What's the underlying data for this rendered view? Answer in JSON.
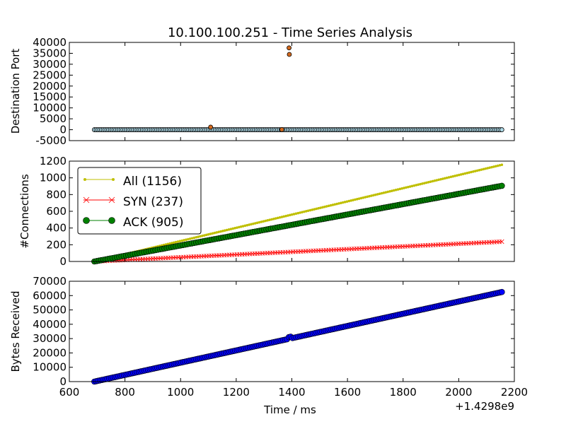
{
  "title": "10.100.100.251 - Time Series Analysis",
  "colors": {
    "all": "#bfbf00",
    "syn": "#ff0000",
    "ack": "#008000",
    "bytes": "#0000ff",
    "port_dot": "#add8e6",
    "port_outlier": "#d2691e"
  },
  "chart_data": [
    {
      "type": "scatter",
      "ylabel": "Destination Port",
      "xlim": [
        600,
        2200
      ],
      "ylim": [
        -5000,
        40000
      ],
      "yticks": [
        "-5000",
        "0",
        "5000",
        "10000",
        "15000",
        "20000",
        "25000",
        "30000",
        "35000",
        "40000"
      ],
      "series": [
        {
          "kind": "baseline",
          "x_start": 690,
          "x_end": 2155,
          "y": 0,
          "count": 230
        },
        {
          "kind": "outliers",
          "points": [
            {
              "x": 1108,
              "y": 1200
            },
            {
              "x": 1364,
              "y": 100
            },
            {
              "x": 1390,
              "y": 37500
            },
            {
              "x": 1391,
              "y": 34500
            }
          ]
        }
      ]
    },
    {
      "type": "line",
      "ylabel": "#Connections",
      "xlim": [
        600,
        2200
      ],
      "ylim": [
        0,
        1200
      ],
      "yticks": [
        "0",
        "200",
        "400",
        "600",
        "800",
        "1000",
        "1200"
      ],
      "legend_position": "upper-left",
      "series": [
        {
          "name": "All (1156)",
          "x_start": 690,
          "x_end": 2155,
          "y_start": 0,
          "y_end": 1156,
          "marker": "small-dot"
        },
        {
          "name": "SYN (237)",
          "x_start": 690,
          "x_end": 2155,
          "y_start": 0,
          "y_end": 237,
          "marker": "x"
        },
        {
          "name": "ACK (905)",
          "x_start": 690,
          "x_end": 2155,
          "y_start": 0,
          "y_end": 905,
          "marker": "circle"
        }
      ]
    },
    {
      "type": "scatter",
      "ylabel": "Bytes Received",
      "xlabel": "Time / ms",
      "x_offset_label": "+1.4298e9",
      "xlim": [
        600,
        2200
      ],
      "ylim": [
        0,
        70000
      ],
      "xticks": [
        "600",
        "800",
        "1000",
        "1200",
        "1400",
        "1600",
        "1800",
        "2000",
        "2200"
      ],
      "yticks": [
        "0",
        "10000",
        "20000",
        "30000",
        "40000",
        "50000",
        "60000",
        "70000"
      ],
      "series": [
        {
          "name": "Bytes Received",
          "x_start": 690,
          "x_end": 2155,
          "y_start": 0,
          "y_end": 62500,
          "marker": "circle"
        }
      ]
    }
  ]
}
